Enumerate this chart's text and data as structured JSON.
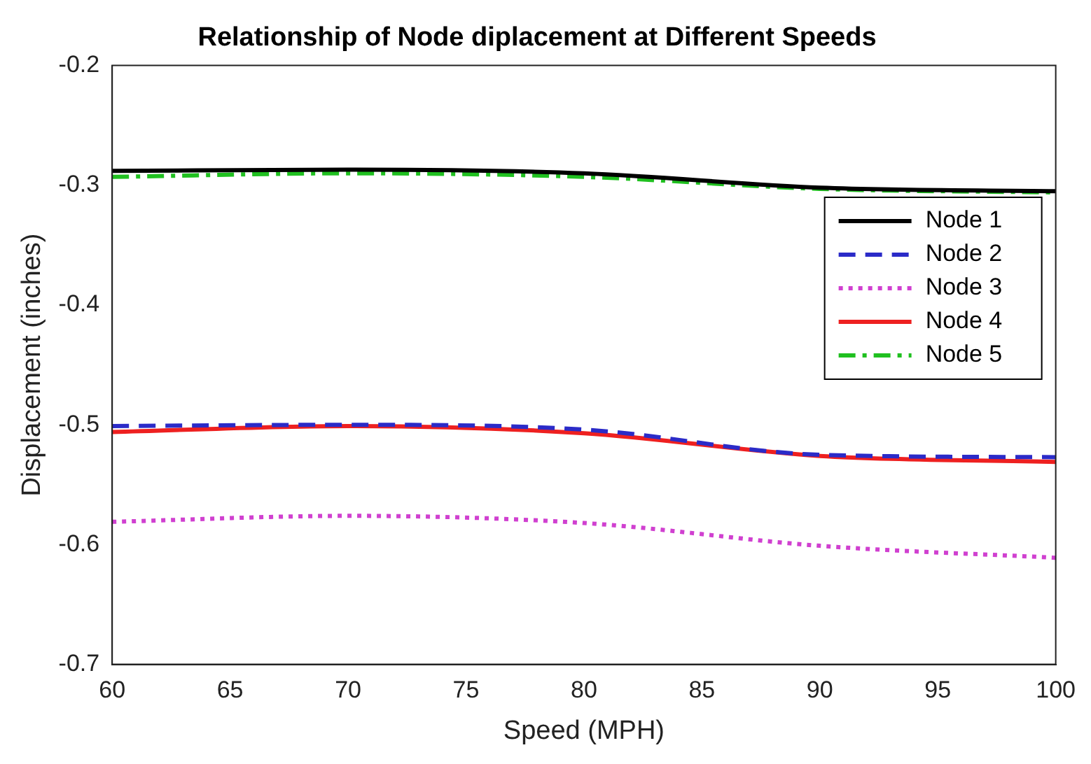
{
  "chart_data": {
    "type": "line",
    "title": "Relationship of Node diplacement at Different Speeds",
    "xlabel": "Speed (MPH)",
    "ylabel": "Displacement (inches)",
    "x": [
      60,
      70,
      80,
      90,
      100
    ],
    "xlim": [
      60,
      100
    ],
    "xticks": [
      60,
      65,
      70,
      75,
      80,
      85,
      90,
      95,
      100
    ],
    "ylim": [
      -0.7,
      -0.2
    ],
    "yticks": [
      -0.7,
      -0.6,
      -0.5,
      -0.4,
      -0.3,
      -0.2
    ],
    "grid": false,
    "legend": "right",
    "marker": "none",
    "series": [
      {
        "name": "Node 1",
        "color": "#000000",
        "line_style": "solid",
        "values": [
          -0.288,
          -0.287,
          -0.29,
          -0.302,
          -0.305
        ]
      },
      {
        "name": "Node 2",
        "color": "#2b2bc8",
        "line_style": "dashed",
        "values": [
          -0.501,
          -0.5,
          -0.504,
          -0.525,
          -0.527
        ]
      },
      {
        "name": "Node 3",
        "color": "#d040d0",
        "line_style": "dotted",
        "values": [
          -0.581,
          -0.576,
          -0.582,
          -0.601,
          -0.611
        ]
      },
      {
        "name": "Node 4",
        "color": "#ee2020",
        "line_style": "solid",
        "values": [
          -0.506,
          -0.501,
          -0.507,
          -0.526,
          -0.531
        ]
      },
      {
        "name": "Node 5",
        "color": "#20c020",
        "line_style": "dashdot",
        "values": [
          -0.293,
          -0.29,
          -0.293,
          -0.303,
          -0.306
        ]
      }
    ]
  }
}
